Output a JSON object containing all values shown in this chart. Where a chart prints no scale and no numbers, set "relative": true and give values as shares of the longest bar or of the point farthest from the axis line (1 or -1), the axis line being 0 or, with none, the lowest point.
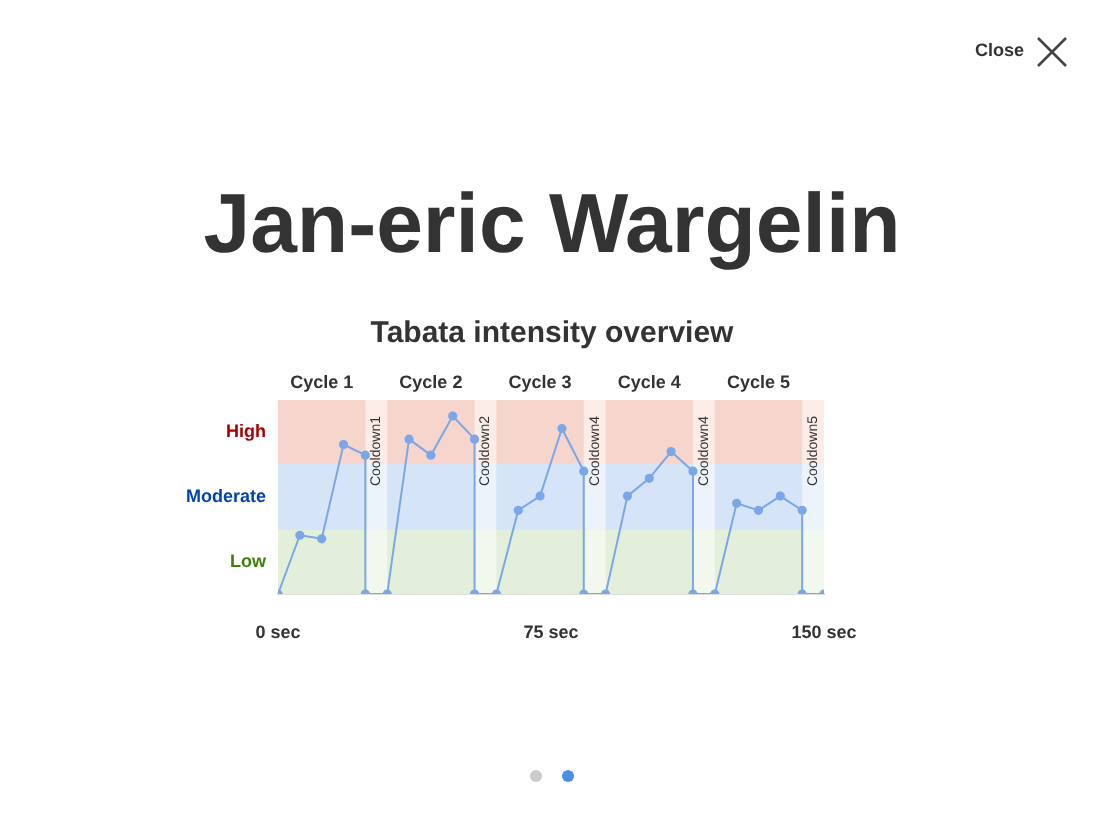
{
  "chart_data": {
    "type": "line",
    "title": "Tabata intensity overview",
    "relative": true,
    "x": [
      0,
      6,
      12,
      18,
      24,
      24,
      30,
      36,
      42,
      48,
      54,
      54,
      60,
      66,
      72,
      78,
      84,
      84,
      90,
      96,
      102,
      108,
      114,
      114,
      120,
      126,
      132,
      138,
      144,
      144,
      150
    ],
    "series": [
      {
        "color": "#7aa7e8",
        "values": [
          0,
          0.33,
          0.31,
          0.84,
          0.78,
          0,
          0,
          0.87,
          0.78,
          1,
          0.87,
          0,
          0,
          0.47,
          0.55,
          0.93,
          0.69,
          0,
          0,
          0.55,
          0.65,
          0.8,
          0.69,
          0,
          0,
          0.51,
          0.47,
          0.55,
          0.47,
          0,
          0
        ]
      }
    ],
    "xlim": [
      0,
      150
    ],
    "xticks": [
      {
        "value": 0,
        "label": "0 sec"
      },
      {
        "value": 75,
        "label": "75 sec"
      },
      {
        "value": 150,
        "label": "150 sec"
      }
    ],
    "bands": [
      {
        "axis": "y",
        "from": 0,
        "to": 0.36,
        "label": "Low",
        "color": "#e3efda"
      },
      {
        "axis": "y",
        "from": 0.36,
        "to": 0.73,
        "label": "Moderate",
        "color": "#d6e4f7"
      },
      {
        "axis": "y",
        "from": 0.73,
        "to": 1.09,
        "label": "High",
        "color": "#f6d5cc"
      },
      {
        "axis": "x",
        "from": 24,
        "to": 30,
        "label": "Cooldown1",
        "color": "#ffffff"
      },
      {
        "axis": "x",
        "from": 54,
        "to": 60,
        "label": "Cooldown2",
        "color": "#ffffff"
      },
      {
        "axis": "x",
        "from": 84,
        "to": 90,
        "label": "Cooldown4",
        "color": "#ffffff"
      },
      {
        "axis": "x",
        "from": 114,
        "to": 120,
        "label": "Cooldown4",
        "color": "#ffffff"
      },
      {
        "axis": "x",
        "from": 144,
        "to": 150,
        "label": "Cooldown5",
        "color": "#ffffff"
      }
    ],
    "annotations": [
      "Jan-eric Wargelin",
      "Close",
      "Cycle 1",
      "Cycle 2",
      "Cycle 3",
      "Cycle 4",
      "Cycle 5"
    ],
    "marker": "circle",
    "line_style": "solid",
    "grid": false,
    "legend": false
  }
}
